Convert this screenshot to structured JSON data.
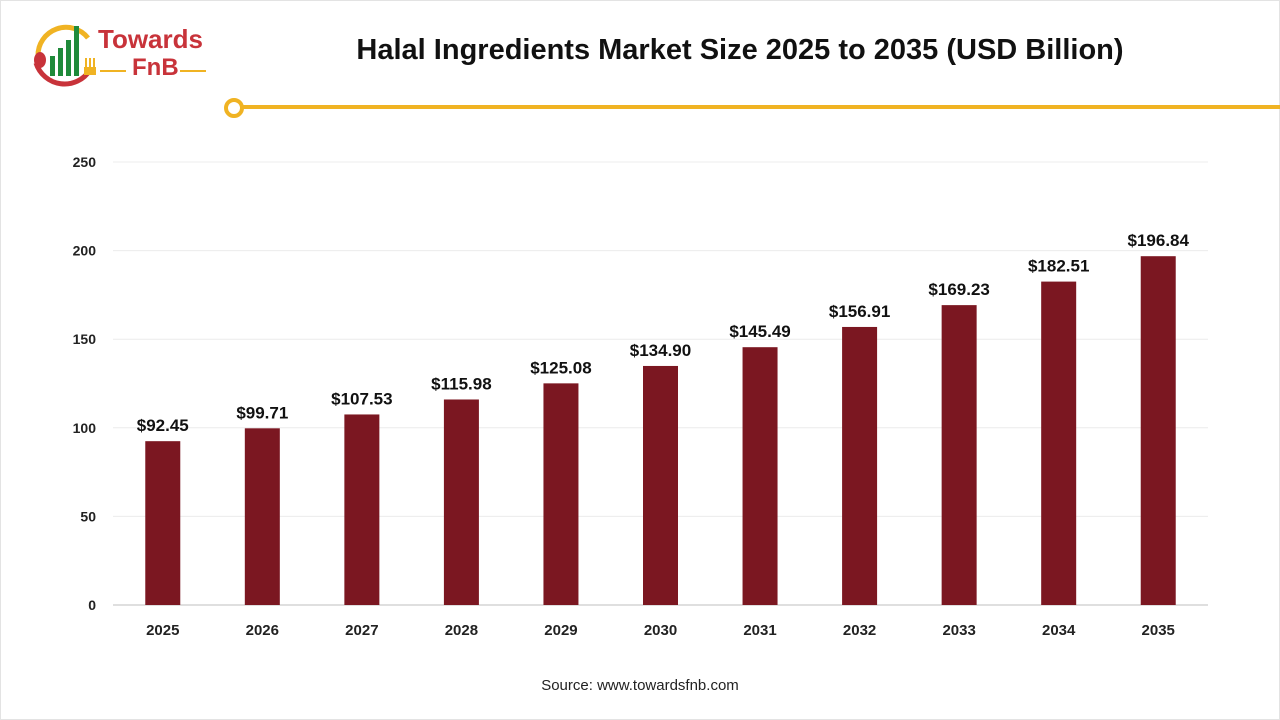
{
  "logo": {
    "line1": "Towards",
    "line2": "FnB"
  },
  "colors": {
    "bar": "#7b1721",
    "accent": "#f0b323",
    "logo_red": "#c8333a",
    "logo_green": "#1f8a3a"
  },
  "source": "Source: www.towardsfnb.com",
  "chart_data": {
    "type": "bar",
    "title": "Halal Ingredients Market Size 2025 to 2035 (USD Billion)",
    "xlabel": "",
    "ylabel": "",
    "categories": [
      "2025",
      "2026",
      "2027",
      "2028",
      "2029",
      "2030",
      "2031",
      "2032",
      "2033",
      "2034",
      "2035"
    ],
    "values": [
      92.45,
      99.71,
      107.53,
      115.98,
      125.08,
      134.9,
      145.49,
      156.91,
      169.23,
      182.51,
      196.84
    ],
    "data_labels": [
      "$92.45",
      "$99.71",
      "$107.53",
      "$115.98",
      "$125.08",
      "$134.90",
      "$145.49",
      "$156.91",
      "$169.23",
      "$182.51",
      "$196.84"
    ],
    "ylim": [
      0,
      250
    ],
    "yticks": [
      0,
      50,
      100,
      150,
      200,
      250
    ],
    "grid": true,
    "legend": "none"
  }
}
